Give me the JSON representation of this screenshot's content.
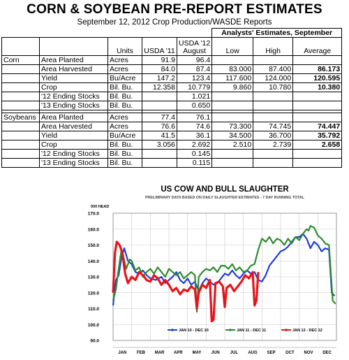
{
  "header": {
    "title": "CORN & SOYBEAN PRE-REPORT ESTIMATES",
    "subtitle": "September 12, 2012 Crop Production/WASDE Reports"
  },
  "table": {
    "analysts_header": "Analysts' Estimates, September",
    "columns": [
      "",
      "",
      "Units",
      "USDA '11",
      "USDA '12 August",
      "Low",
      "High",
      "Average"
    ],
    "usda12_line1": "USDA '12",
    "usda12_line2": "August",
    "sections": [
      {
        "crop": "Corn",
        "rows": [
          {
            "item": "Area Planted",
            "units": "Acres",
            "usda11": "91.9",
            "usda12": "96.4",
            "low": "",
            "high": "",
            "avg": ""
          },
          {
            "item": "Area Harvested",
            "units": "Acres",
            "usda11": "84.0",
            "usda12": "87.4",
            "low": "83.000",
            "high": "87.400",
            "avg": "86.173"
          },
          {
            "item": "Yield",
            "units": "Bu/Acre",
            "usda11": "147.2",
            "usda12": "123.4",
            "low": "117.600",
            "high": "124.000",
            "avg": "120.595"
          },
          {
            "item": "Crop",
            "units": "Bil. Bu.",
            "usda11": "12.358",
            "usda12": "10.779",
            "low": "9.860",
            "high": "10.780",
            "avg": "10.380"
          },
          {
            "item": "'12 Ending Stocks",
            "units": "Bil. Bu.",
            "usda11": "",
            "usda12": "1.021",
            "low": "",
            "high": "",
            "avg": ""
          },
          {
            "item": "'13 Ending Stocks",
            "units": "Bil. Bu.",
            "usda11": "",
            "usda12": "0.650",
            "low": "",
            "high": "",
            "avg": ""
          }
        ]
      },
      {
        "crop": "Soybeans",
        "rows": [
          {
            "item": "Area Planted",
            "units": "Acres",
            "usda11": "77.4",
            "usda12": "76.1",
            "low": "",
            "high": "",
            "avg": ""
          },
          {
            "item": "Area Harvested",
            "units": "Acres",
            "usda11": "76.6",
            "usda12": "74.6",
            "low": "73.300",
            "high": "74.745",
            "avg": "74.447"
          },
          {
            "item": "Yield",
            "units": "Bu/Acre",
            "usda11": "41.5",
            "usda12": "36.1",
            "low": "34.500",
            "high": "36.700",
            "avg": "35.792"
          },
          {
            "item": "Crop",
            "units": "Bil. Bu.",
            "usda11": "3.056",
            "usda12": "2.692",
            "low": "2.510",
            "high": "2.739",
            "avg": "2.658"
          },
          {
            "item": "'12 Ending Stocks",
            "units": "Bil. Bu.",
            "usda11": "",
            "usda12": "0.145",
            "low": "",
            "high": "",
            "avg": ""
          },
          {
            "item": "'13 Ending Stocks",
            "units": "Bil. Bu.",
            "usda11": "",
            "usda12": "0.115",
            "low": "",
            "high": "",
            "avg": ""
          }
        ]
      }
    ]
  },
  "chart_data": {
    "type": "line",
    "title": "US COW AND BULL SLAUGHTER",
    "subtitle": "PRELIMINARY DATA BASED ON DAILY SLAUGHTER ESTIMATES - 7 DAY RUNNING TOTAL",
    "ylabel": "000 HEAD",
    "ylim": [
      90,
      170
    ],
    "yticks": [
      "170.0",
      "160.0",
      "150.0",
      "140.0",
      "130.0",
      "120.0",
      "110.0",
      "100.0",
      "90.0"
    ],
    "categories": [
      "JAN",
      "FEB",
      "MAR",
      "APR",
      "MAY",
      "JUN",
      "JUL",
      "AUG",
      "SEP",
      "OCT",
      "NOV",
      "DEC"
    ],
    "grid": true,
    "legend_position": "bottom",
    "series": [
      {
        "name": "JAN 10 - DEC 10",
        "color": "#1f3fd8",
        "values": [
          [
            0.0,
            112
          ],
          [
            0.15,
            128
          ],
          [
            0.3,
            131
          ],
          [
            0.45,
            142
          ],
          [
            0.6,
            148
          ],
          [
            0.8,
            140
          ],
          [
            1.0,
            138
          ],
          [
            1.2,
            133
          ],
          [
            1.4,
            132
          ],
          [
            1.6,
            134
          ],
          [
            1.8,
            131
          ],
          [
            2.0,
            129
          ],
          [
            2.3,
            128
          ],
          [
            2.6,
            130
          ],
          [
            2.8,
            126
          ],
          [
            3.0,
            128
          ],
          [
            3.2,
            130
          ],
          [
            3.4,
            133
          ],
          [
            3.6,
            128
          ],
          [
            3.8,
            126
          ],
          [
            4.0,
            129
          ],
          [
            4.2,
            125
          ],
          [
            4.4,
            127
          ],
          [
            4.6,
            121
          ],
          [
            4.8,
            126
          ],
          [
            5.0,
            129
          ],
          [
            5.2,
            127
          ],
          [
            5.4,
            125
          ],
          [
            5.6,
            126
          ],
          [
            5.8,
            129
          ],
          [
            6.0,
            132
          ],
          [
            6.2,
            131
          ],
          [
            6.4,
            134
          ],
          [
            6.6,
            131
          ],
          [
            6.8,
            129
          ],
          [
            7.0,
            132
          ],
          [
            7.2,
            134
          ],
          [
            7.4,
            132
          ],
          [
            7.6,
            133
          ],
          [
            7.8,
            128
          ],
          [
            8.0,
            127
          ],
          [
            8.2,
            131
          ],
          [
            8.4,
            137
          ],
          [
            8.6,
            140
          ],
          [
            8.8,
            143
          ],
          [
            9.0,
            146
          ],
          [
            9.2,
            147
          ],
          [
            9.4,
            149
          ],
          [
            9.6,
            152
          ],
          [
            9.8,
            155
          ],
          [
            10.0,
            155
          ],
          [
            10.2,
            157
          ],
          [
            10.4,
            154
          ],
          [
            10.5,
            151
          ],
          [
            10.6,
            148
          ],
          [
            10.8,
            152
          ],
          [
            11.0,
            150
          ],
          [
            11.2,
            146
          ],
          [
            11.4,
            148
          ],
          [
            11.6,
            147
          ],
          [
            11.75,
            120
          ],
          [
            11.9,
            118
          ]
        ]
      },
      {
        "name": "JAN 11 - DEC 11",
        "color": "#2e8b2e",
        "values": [
          [
            0.0,
            115
          ],
          [
            0.15,
            122
          ],
          [
            0.3,
            135
          ],
          [
            0.45,
            147
          ],
          [
            0.55,
            143
          ],
          [
            0.7,
            135
          ],
          [
            0.9,
            141
          ],
          [
            1.0,
            140
          ],
          [
            1.2,
            134
          ],
          [
            1.4,
            136
          ],
          [
            1.6,
            130
          ],
          [
            1.8,
            133
          ],
          [
            2.0,
            135
          ],
          [
            2.2,
            132
          ],
          [
            2.4,
            136
          ],
          [
            2.6,
            133
          ],
          [
            2.8,
            130
          ],
          [
            3.0,
            135
          ],
          [
            3.2,
            133
          ],
          [
            3.4,
            131
          ],
          [
            3.6,
            133
          ],
          [
            3.8,
            129
          ],
          [
            4.0,
            131
          ],
          [
            4.2,
            133
          ],
          [
            4.4,
            131
          ],
          [
            4.5,
            108
          ],
          [
            4.6,
            130
          ],
          [
            4.8,
            133
          ],
          [
            5.0,
            135
          ],
          [
            5.2,
            134
          ],
          [
            5.4,
            136
          ],
          [
            5.6,
            133
          ],
          [
            5.8,
            137
          ],
          [
            6.0,
            137
          ],
          [
            6.2,
            135
          ],
          [
            6.4,
            138
          ],
          [
            6.6,
            134
          ],
          [
            6.8,
            136
          ],
          [
            7.0,
            133
          ],
          [
            7.2,
            134
          ],
          [
            7.4,
            137
          ],
          [
            7.6,
            138
          ],
          [
            7.8,
            147
          ],
          [
            8.0,
            154
          ],
          [
            8.2,
            152
          ],
          [
            8.4,
            155
          ],
          [
            8.6,
            151
          ],
          [
            8.8,
            154
          ],
          [
            9.0,
            153
          ],
          [
            9.2,
            150
          ],
          [
            9.4,
            154
          ],
          [
            9.6,
            151
          ],
          [
            9.8,
            155
          ],
          [
            10.0,
            153
          ],
          [
            10.2,
            157
          ],
          [
            10.4,
            160
          ],
          [
            10.5,
            159
          ],
          [
            10.6,
            162
          ],
          [
            10.8,
            161
          ],
          [
            11.0,
            156
          ],
          [
            11.2,
            154
          ],
          [
            11.4,
            151
          ],
          [
            11.6,
            150
          ],
          [
            11.8,
            115
          ],
          [
            11.95,
            113
          ]
        ]
      },
      {
        "name": "JAN 12 - DEC 12",
        "color": "#e8141a",
        "values": [
          [
            0.0,
            120
          ],
          [
            0.1,
            145
          ],
          [
            0.2,
            152
          ],
          [
            0.35,
            150
          ],
          [
            0.5,
            145
          ],
          [
            0.65,
            132
          ],
          [
            0.8,
            126
          ],
          [
            1.0,
            130
          ],
          [
            1.2,
            128
          ],
          [
            1.4,
            133
          ],
          [
            1.6,
            131
          ],
          [
            1.8,
            128
          ],
          [
            2.0,
            127
          ],
          [
            2.2,
            131
          ],
          [
            2.4,
            129
          ],
          [
            2.6,
            125
          ],
          [
            2.8,
            128
          ],
          [
            3.0,
            125
          ],
          [
            3.2,
            121
          ],
          [
            3.4,
            123
          ],
          [
            3.6,
            119
          ],
          [
            3.8,
            122
          ],
          [
            4.0,
            121
          ],
          [
            4.2,
            124
          ],
          [
            4.4,
            122
          ],
          [
            4.5,
            110
          ],
          [
            4.6,
            120
          ],
          [
            4.8,
            125
          ],
          [
            5.0,
            123
          ],
          [
            5.2,
            128
          ],
          [
            5.3,
            102
          ],
          [
            5.4,
            103
          ],
          [
            5.5,
            126
          ],
          [
            5.7,
            127
          ],
          [
            5.9,
            124
          ],
          [
            6.0,
            111
          ],
          [
            6.1,
            123
          ],
          [
            6.3,
            125
          ],
          [
            6.5,
            121
          ],
          [
            6.7,
            124
          ],
          [
            6.9,
            127
          ],
          [
            7.1,
            131
          ],
          [
            7.3,
            129
          ],
          [
            7.5,
            133
          ],
          [
            7.6,
            112
          ],
          [
            7.7,
            115
          ],
          [
            7.8,
            133
          ]
        ]
      }
    ]
  }
}
